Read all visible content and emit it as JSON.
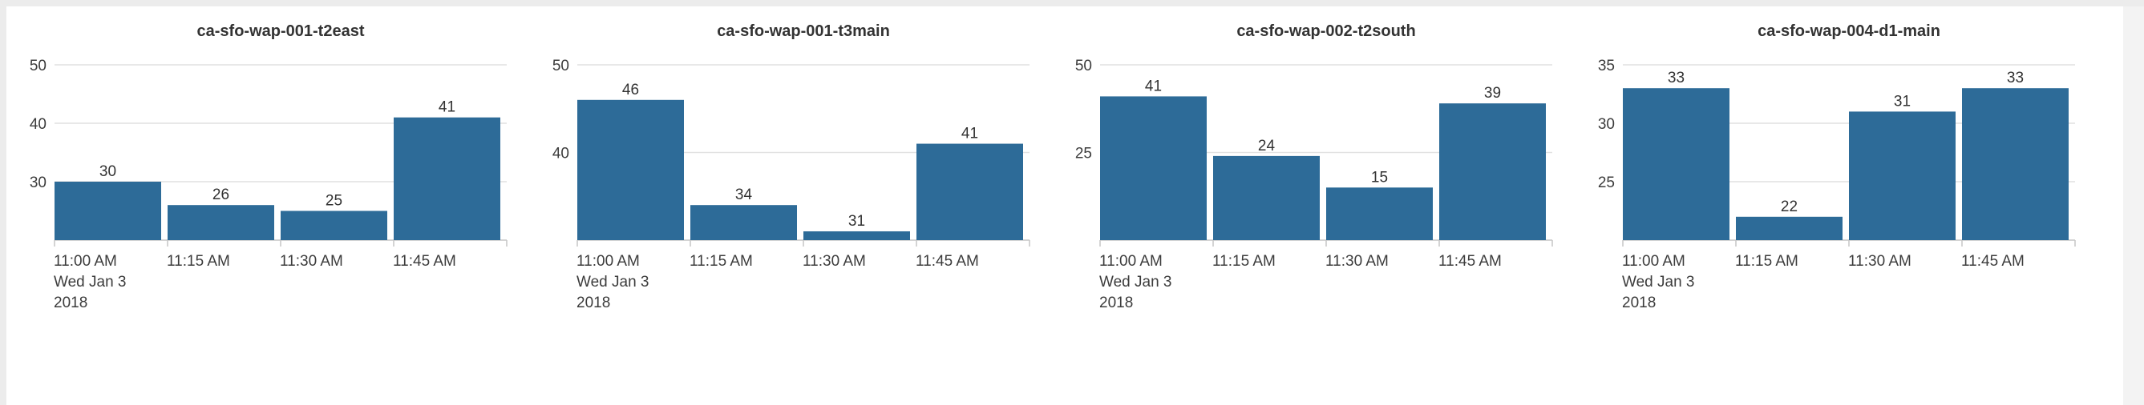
{
  "chart_data": [
    {
      "type": "bar",
      "title": "ca-sfo-wap-001-t2east",
      "categories": [
        "11:00 AM",
        "11:15 AM",
        "11:30 AM",
        "11:45 AM"
      ],
      "first_category_sublabels": [
        "Wed Jan 3",
        "2018"
      ],
      "values": [
        30,
        26,
        25,
        41
      ],
      "ylim": [
        20,
        50
      ],
      "yticks": [
        30,
        40,
        50
      ],
      "grid": true,
      "bar_color": "#2d6b98"
    },
    {
      "type": "bar",
      "title": "ca-sfo-wap-001-t3main",
      "categories": [
        "11:00 AM",
        "11:15 AM",
        "11:30 AM",
        "11:45 AM"
      ],
      "first_category_sublabels": [
        "Wed Jan 3",
        "2018"
      ],
      "values": [
        46,
        34,
        31,
        41
      ],
      "ylim": [
        30,
        50
      ],
      "yticks": [
        40,
        50
      ],
      "grid": true,
      "bar_color": "#2d6b98"
    },
    {
      "type": "bar",
      "title": "ca-sfo-wap-002-t2south",
      "categories": [
        "11:00 AM",
        "11:15 AM",
        "11:30 AM",
        "11:45 AM"
      ],
      "first_category_sublabels": [
        "Wed Jan 3",
        "2018"
      ],
      "values": [
        41,
        24,
        15,
        39
      ],
      "ylim": [
        0,
        50
      ],
      "yticks": [
        25,
        50
      ],
      "grid": true,
      "bar_color": "#2d6b98"
    },
    {
      "type": "bar",
      "title": "ca-sfo-wap-004-d1-main",
      "categories": [
        "11:00 AM",
        "11:15 AM",
        "11:30 AM",
        "11:45 AM"
      ],
      "first_category_sublabels": [
        "Wed Jan 3",
        "2018"
      ],
      "values": [
        33,
        22,
        31,
        33
      ],
      "ylim": [
        20,
        35
      ],
      "yticks": [
        25,
        30,
        35
      ],
      "grid": true,
      "bar_color": "#2d6b98"
    }
  ]
}
